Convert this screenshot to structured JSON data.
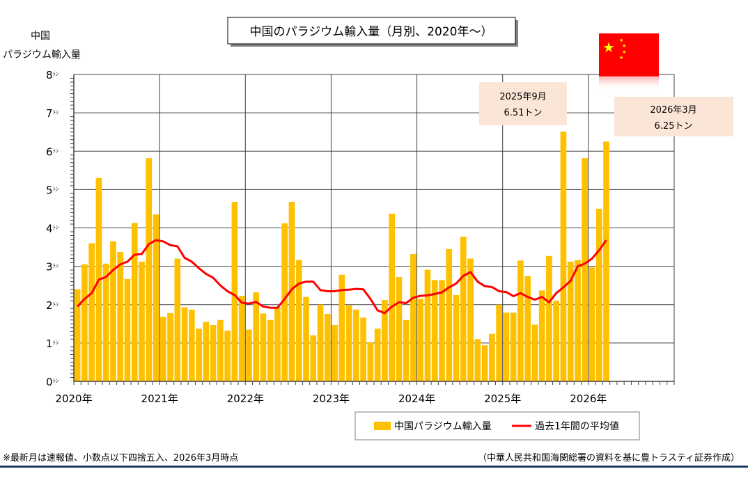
{
  "chart_data": {
    "type": "bar",
    "title": "中国のパラジウム輸入量（月別、2020年～）",
    "ylabel_line1": "中国",
    "ylabel_line2": "パラジウム輸入量",
    "y_unit": "ﾄﾝ",
    "ylim": [
      0,
      8
    ],
    "yticks": [
      0,
      1,
      2,
      3,
      4,
      5,
      6,
      7,
      8
    ],
    "xticks": [
      "2020年",
      "2021年",
      "2022年",
      "2023年",
      "2024年",
      "2025年",
      "2026年"
    ],
    "x_months_total": 84,
    "grid": true,
    "legend_placement": "bottom-right",
    "series": [
      {
        "name": "中国パラジウム輸入量",
        "type": "bar",
        "color": "#ffc000",
        "values": [
          2.4,
          3.05,
          3.6,
          5.3,
          3.07,
          3.65,
          3.37,
          2.67,
          4.13,
          3.12,
          5.82,
          4.35,
          1.68,
          1.78,
          3.2,
          1.93,
          1.87,
          1.37,
          1.55,
          1.47,
          1.6,
          1.32,
          4.68,
          2.23,
          1.35,
          2.32,
          1.77,
          1.6,
          1.93,
          4.12,
          4.68,
          3.16,
          2.2,
          1.2,
          2.0,
          1.76,
          1.47,
          2.78,
          1.98,
          1.87,
          1.66,
          1.02,
          1.37,
          2.12,
          4.37,
          2.72,
          1.6,
          3.32,
          2.15,
          2.91,
          2.64,
          2.64,
          3.45,
          2.25,
          3.77,
          3.2,
          1.1,
          0.94,
          1.24,
          2.0,
          1.79,
          1.79,
          3.15,
          2.74,
          1.48,
          2.37,
          3.27,
          2.1,
          6.51,
          3.12,
          3.16,
          5.82,
          2.97,
          4.5,
          6.25
        ]
      },
      {
        "name": "過去1年間の平均値",
        "type": "line",
        "color": "#ff0000",
        "values": [
          1.95,
          2.15,
          2.3,
          2.65,
          2.72,
          2.9,
          3.05,
          3.12,
          3.3,
          3.32,
          3.58,
          3.68,
          3.65,
          3.55,
          3.52,
          3.22,
          3.12,
          2.95,
          2.8,
          2.7,
          2.5,
          2.35,
          2.25,
          2.05,
          2.03,
          2.07,
          1.95,
          1.92,
          1.92,
          2.15,
          2.4,
          2.55,
          2.6,
          2.6,
          2.38,
          2.35,
          2.35,
          2.38,
          2.39,
          2.41,
          2.4,
          2.15,
          1.85,
          1.78,
          1.95,
          2.06,
          2.04,
          2.18,
          2.23,
          2.24,
          2.28,
          2.32,
          2.45,
          2.55,
          2.75,
          2.85,
          2.6,
          2.48,
          2.46,
          2.35,
          2.33,
          2.22,
          2.3,
          2.2,
          2.13,
          2.2,
          2.06,
          2.3,
          2.45,
          2.62,
          3.0,
          3.07,
          3.2,
          3.42,
          3.68
        ]
      }
    ],
    "annotations": [
      {
        "line1": "2025年9月",
        "line2": "6.51トン"
      },
      {
        "line1": "2026年3月",
        "line2": "6.25トン"
      }
    ],
    "footnote_left": "※最新月は速報値、小数点以下四捨五入、2026年3月時点",
    "footnote_right": "（中華人民共和国海関総署の資料を基に豊トラスティ証券作成）"
  },
  "colors": {
    "annotation_bg": "#fbe5d6",
    "rule": "#1f3864",
    "flag": "#ff0000",
    "star": "#ffff00"
  }
}
